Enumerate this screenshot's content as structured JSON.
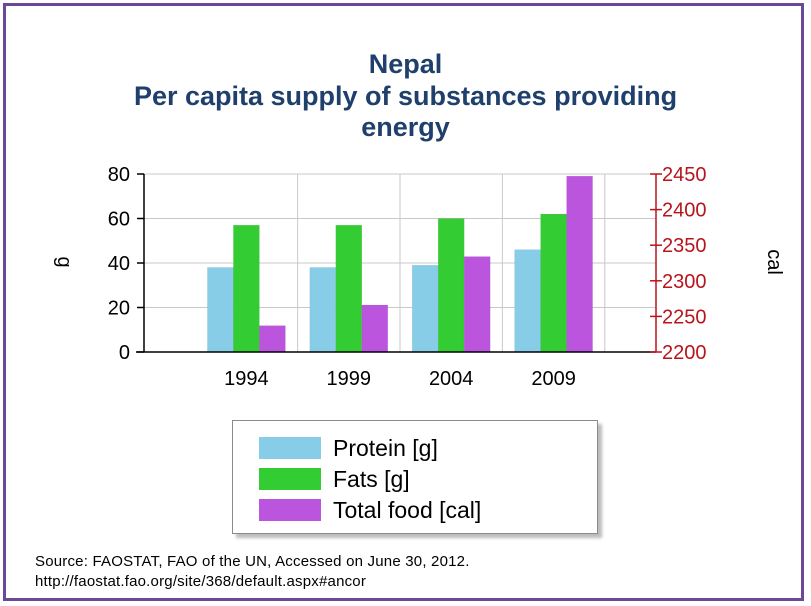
{
  "chart_data": {
    "type": "bar",
    "title_lines": [
      "Nepal",
      "Per capita supply of substances providing",
      "energy"
    ],
    "categories": [
      "1994",
      "1999",
      "2004",
      "2009"
    ],
    "left_axis": {
      "label": "g",
      "ticks": [
        "0",
        "20",
        "40",
        "60",
        "80"
      ],
      "range": [
        0,
        80
      ]
    },
    "right_axis": {
      "label": "cal",
      "ticks": [
        "2200",
        "2250",
        "2300",
        "2350",
        "2400",
        "2450"
      ],
      "range": [
        2200,
        2450
      ],
      "color": "#b8141b"
    },
    "series": [
      {
        "name": "Protein [g]",
        "axis": "left",
        "color": "#87cde8",
        "values": [
          38,
          38,
          39,
          46
        ]
      },
      {
        "name": "Fats [g]",
        "axis": "left",
        "color": "#33cc33",
        "values": [
          57,
          57,
          60,
          62
        ]
      },
      {
        "name": "Total food [cal]",
        "axis": "right",
        "color": "#bb55dd",
        "values": [
          2237,
          2266,
          2334,
          2447
        ]
      }
    ],
    "grid": true,
    "legend_position": "bottom"
  },
  "source": {
    "line1": "Source: FAOSTAT, FAO of the UN, Accessed on June 30, 2012.",
    "line2": "http://faostat.fao.org/site/368/default.aspx#ancor"
  }
}
